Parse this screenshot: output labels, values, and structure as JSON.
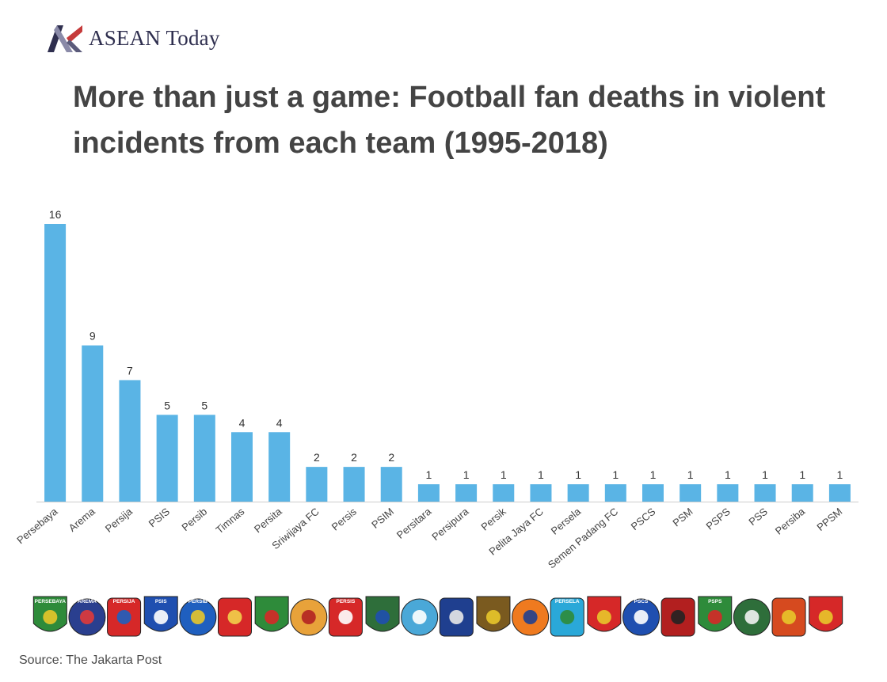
{
  "brand": {
    "name": "ASEAN Today",
    "logo_icon": "asean-today-logo-icon"
  },
  "title": "More than just a game: Football fan deaths in violent incidents from each team (1995-2018)",
  "source": "Source: The Jakarta Post",
  "chart_data": {
    "type": "bar",
    "title": "More than just a game: Football fan deaths in violent incidents from each team (1995-2018)",
    "xlabel": "",
    "ylabel": "",
    "ylim": [
      0,
      16
    ],
    "grid": false,
    "bar_color": "#5ab4e5",
    "categories": [
      "Persebaya",
      "Arema",
      "Persija",
      "PSIS",
      "Persib",
      "Timnas",
      "Persita",
      "Sriwijaya FC",
      "Persis",
      "PSIM",
      "Persitara",
      "Persipura",
      "Persik",
      "Pelita Jaya FC",
      "Persela",
      "Semen Padang FC",
      "PSCS",
      "PSM",
      "PSPS",
      "PSS",
      "Persiba",
      "PPSM"
    ],
    "values": [
      16,
      9,
      7,
      5,
      5,
      4,
      4,
      2,
      2,
      2,
      1,
      1,
      1,
      1,
      1,
      1,
      1,
      1,
      1,
      1,
      1,
      1
    ]
  },
  "crests": [
    {
      "team": "Persebaya",
      "label": "PERSEBAYA",
      "color": "#2e8b3a",
      "accent": "#e8c62a"
    },
    {
      "team": "Arema",
      "label": "AREMA",
      "color": "#2a3f8f",
      "accent": "#e03a3a"
    },
    {
      "team": "Persija",
      "label": "PERSIJA",
      "color": "#d62828",
      "accent": "#1f5fbf"
    },
    {
      "team": "PSIS",
      "label": "PSIS",
      "color": "#1f4fb0",
      "accent": "#ffffff"
    },
    {
      "team": "Persib",
      "label": "PERSIB",
      "color": "#1f5fbf",
      "accent": "#e8c62a"
    },
    {
      "team": "Timnas",
      "label": "",
      "color": "#d62828",
      "accent": "#f2d04a"
    },
    {
      "team": "Persita",
      "label": "",
      "color": "#2e8b3a",
      "accent": "#d62828"
    },
    {
      "team": "Sriwijaya FC",
      "label": "",
      "color": "#e8a23a",
      "accent": "#b22222"
    },
    {
      "team": "Persis",
      "label": "PERSIS",
      "color": "#d62828",
      "accent": "#ffffff"
    },
    {
      "team": "PSIM",
      "label": "",
      "color": "#2e6e3a",
      "accent": "#1f4fb0"
    },
    {
      "team": "Persitara",
      "label": "",
      "color": "#4aa8d8",
      "accent": "#ffffff"
    },
    {
      "team": "Persipura",
      "label": "",
      "color": "#1f3f8f",
      "accent": "#e8e8e8"
    },
    {
      "team": "Persik",
      "label": "",
      "color": "#7a5a1f",
      "accent": "#e8c62a"
    },
    {
      "team": "Pelita Jaya FC",
      "label": "",
      "color": "#ef7a1f",
      "accent": "#1f3f8f"
    },
    {
      "team": "Persela",
      "label": "PERSELA",
      "color": "#2aa8d8",
      "accent": "#2e8b3a"
    },
    {
      "team": "Semen Padang FC",
      "label": "",
      "color": "#d62828",
      "accent": "#e8c62a"
    },
    {
      "team": "PSCS",
      "label": "PSCS",
      "color": "#1f4fb0",
      "accent": "#ffffff"
    },
    {
      "team": "PSM",
      "label": "",
      "color": "#b21f1f",
      "accent": "#222222"
    },
    {
      "team": "PSPS",
      "label": "PSPS",
      "color": "#2e8b3a",
      "accent": "#d62828"
    },
    {
      "team": "PSS",
      "label": "",
      "color": "#2e6e3a",
      "accent": "#f2f2f2"
    },
    {
      "team": "Persiba",
      "label": "",
      "color": "#d64a1f",
      "accent": "#e8c62a"
    },
    {
      "team": "PPSM",
      "label": "",
      "color": "#d62828",
      "accent": "#e8c62a"
    }
  ]
}
